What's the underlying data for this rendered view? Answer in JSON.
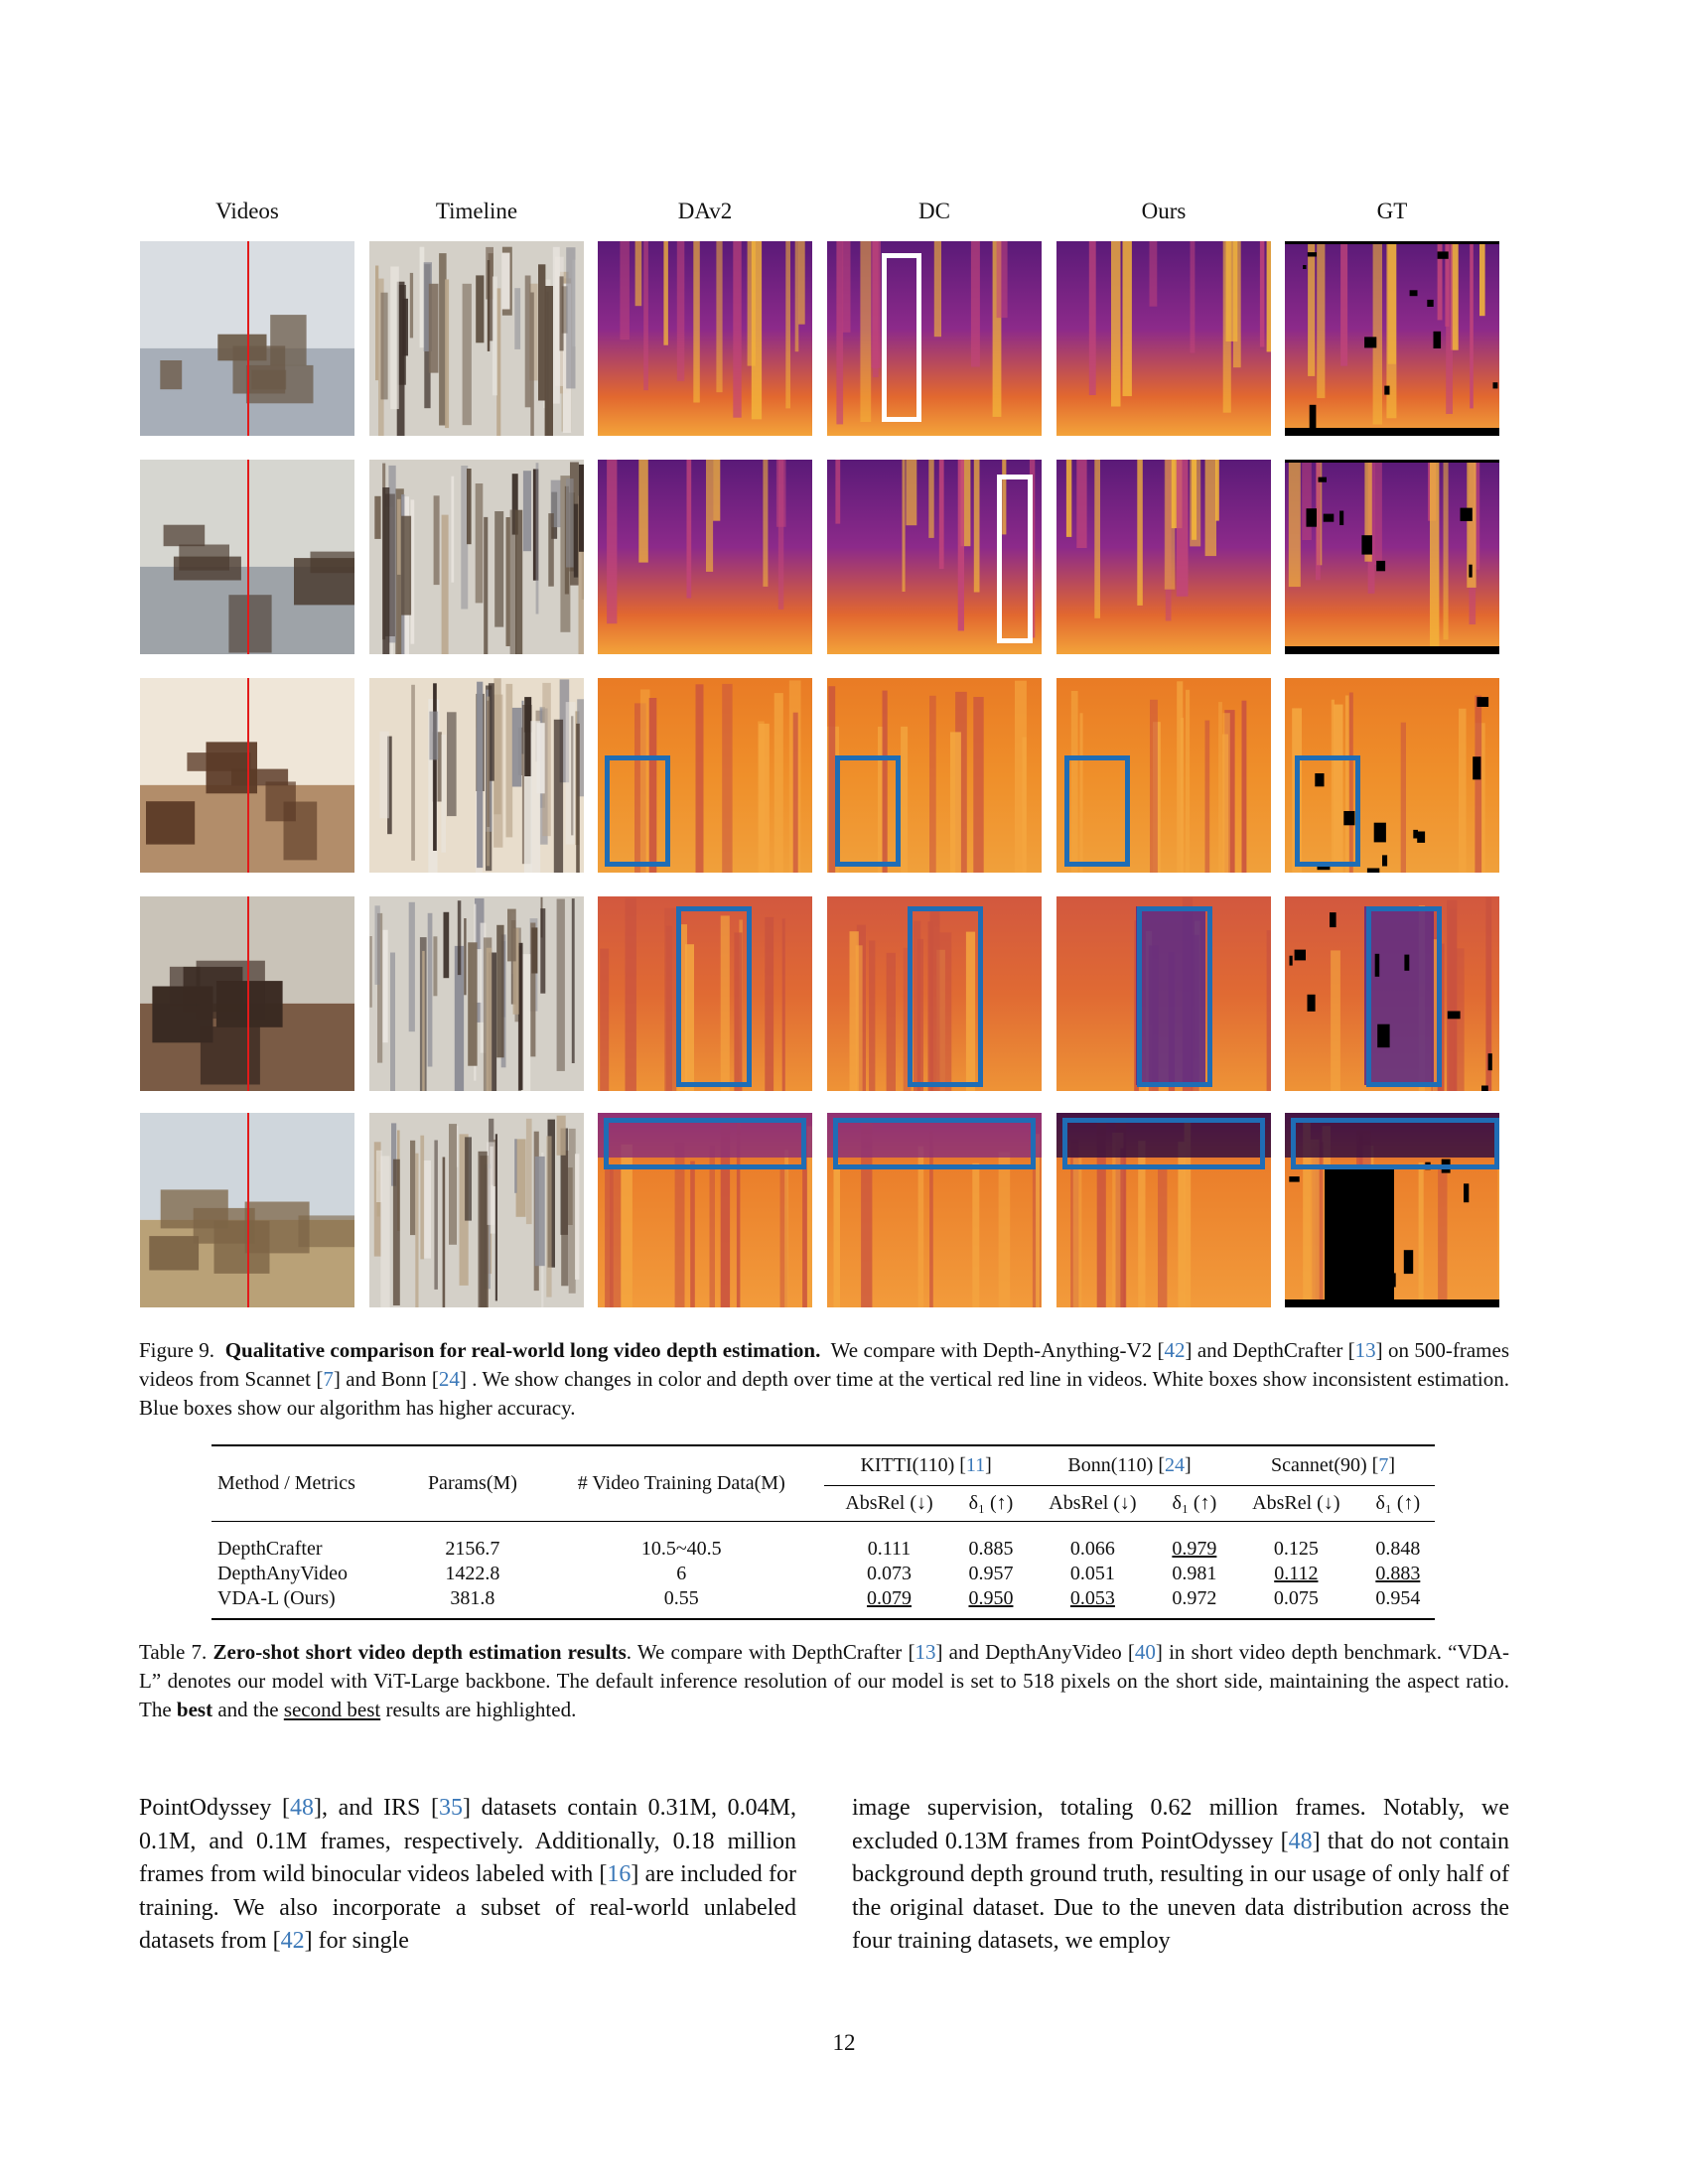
{
  "figure": {
    "column_headers": [
      "Videos",
      "Timeline",
      "DAv2",
      "DC",
      "Ours",
      "GT"
    ],
    "caption_label": "Figure 9.",
    "caption_title": "Qualitative comparison for real-world long video depth estimation.",
    "caption_parts": [
      "We compare with Depth-Anything-V2 [",
      "42",
      "] and DepthCrafter [",
      "13",
      "] on 500-frames videos from Scannet [",
      "7",
      "] and Bonn [",
      "24",
      "] . We show changes in color and depth over time at the vertical red line in videos. White boxes show inconsistent estimation. Blue boxes show our algorithm has higher accuracy."
    ],
    "colors": {
      "box_blue": "#1f6db5",
      "box_white": "#ffffff",
      "red_line": "#e21a1a",
      "citation": "#3b78b8"
    }
  },
  "table": {
    "header": {
      "method": "Method / Metrics",
      "params": "Params(M)",
      "video_data": "# Video Training Data(M)",
      "kitti": {
        "label": "KITTI(110) [",
        "cite": "11",
        "end": "]"
      },
      "bonn": {
        "label": "Bonn(110) [",
        "cite": "24",
        "end": "]"
      },
      "scannet": {
        "label": "Scannet(90) [",
        "cite": "7",
        "end": "]"
      },
      "absrel": "AbsRel (↓)",
      "delta": "δ₁ (↑)"
    },
    "rows": [
      {
        "method": "DepthCrafter",
        "params": "2156.7",
        "data": "10.5~40.5",
        "kitti_abs": "0.111",
        "kitti_d": "0.885",
        "bonn_abs": "0.066",
        "bonn_d": "0.979",
        "scan_abs": "0.125",
        "scan_d": "0.848"
      },
      {
        "method": "DepthAnyVideo",
        "params": "1422.8",
        "data": "6",
        "kitti_abs": "0.073",
        "kitti_d": "0.957",
        "bonn_abs": "0.051",
        "bonn_d": "0.981",
        "scan_abs": "0.112",
        "scan_d": "0.883"
      },
      {
        "method": "VDA-L (Ours)",
        "params": "381.8",
        "data": "0.55",
        "kitti_abs": "0.079",
        "kitti_d": "0.950",
        "bonn_abs": "0.053",
        "bonn_d": "0.972",
        "scan_abs": "0.075",
        "scan_d": "0.954"
      }
    ],
    "caption_label": "Table 7.",
    "caption_title": "Zero-shot short video depth estimation results",
    "caption_parts": [
      ". We compare with DepthCrafter [",
      "13",
      "] and DepthAnyVideo [",
      "40",
      "] in short video depth benchmark. “VDA-L” denotes our model with ViT-Large backbone. The default inference resolution of our model is set to 518 pixels on the short side, maintaining the aspect ratio. The ",
      "best",
      " and the ",
      "second best",
      " results are highlighted."
    ]
  },
  "body": {
    "left_parts": [
      "PointOdyssey [",
      "48",
      "], and IRS [",
      "35",
      "] datasets contain 0.31M, 0.04M, 0.1M, and 0.1M frames, respectively. Additionally, 0.18 million frames from wild binocular videos labeled with [",
      "16",
      "] are included for training. We also incorporate a subset of real-world unlabeled datasets from [",
      "42",
      "] for single"
    ],
    "right_parts": [
      "image supervision, totaling 0.62 million frames. Notably, we excluded 0.13M frames from PointOdyssey [",
      "48",
      "] that do not contain background depth ground truth, resulting in our usage of only half of the original dataset. Due to the uneven data distribution across the four training datasets, we employ"
    ]
  },
  "page_number": "12"
}
